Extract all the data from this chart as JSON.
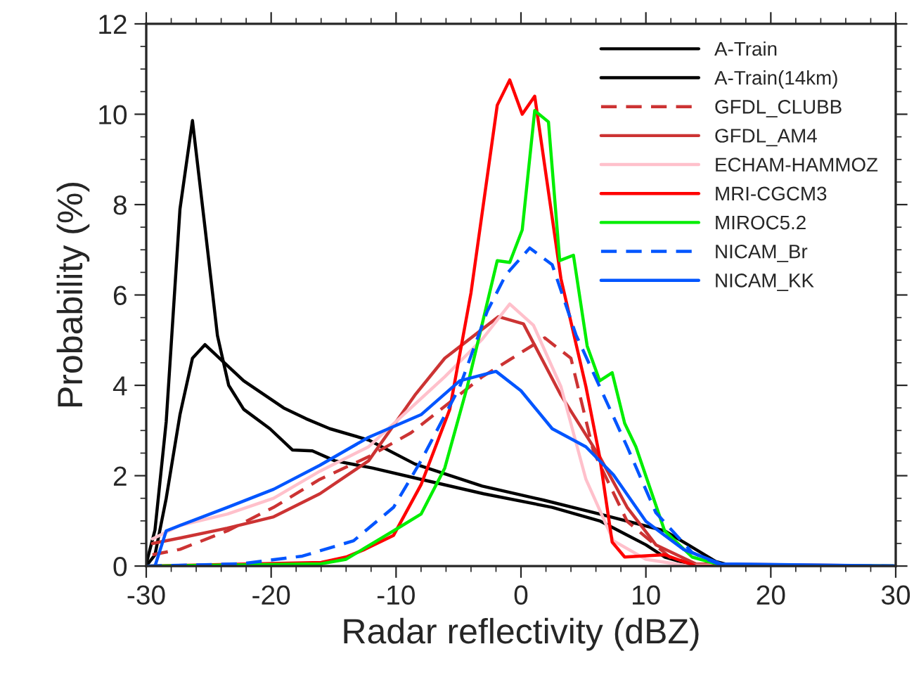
{
  "chart_data": {
    "type": "line",
    "xlabel": "Radar reflectivity (dBZ)",
    "ylabel": "Probability (%)",
    "xlim": [
      -30,
      30
    ],
    "ylim": [
      0,
      12
    ],
    "xticks": [
      -30,
      -20,
      -10,
      0,
      10,
      20,
      30
    ],
    "yticks": [
      0,
      2,
      4,
      6,
      8,
      10,
      12
    ],
    "grid": false,
    "legend": "top right",
    "marker": "none",
    "series": [
      {
        "name": "A-Train",
        "color": "#000000",
        "line_style": "solid",
        "x": [
          -30,
          -29.3,
          -28.4,
          -27.3,
          -26.3,
          -25.3,
          -22.2,
          -19,
          -17.2,
          -15.3,
          -12.2,
          -8.5,
          -3.1,
          1.8,
          6.3,
          11.5,
          13.5,
          15.6,
          17,
          30
        ],
        "values": [
          0,
          0.25,
          1.5,
          3.35,
          4.6,
          4.9,
          4.1,
          3.5,
          3.26,
          3.04,
          2.79,
          2.26,
          1.77,
          1.46,
          1.15,
          0.78,
          0.45,
          0.1,
          0,
          0
        ]
      },
      {
        "name": "A-Train(14km)",
        "color": "#000000",
        "line_style": "solid",
        "x": [
          -30,
          -29.3,
          -28.4,
          -27.3,
          -26.3,
          -25.3,
          -24.3,
          -23.4,
          -22.2,
          -20.1,
          -18.3,
          -16.7,
          -14.9,
          -11.9,
          -8.5,
          -3,
          2.5,
          6.3,
          10,
          11.5,
          14,
          30
        ],
        "values": [
          0.05,
          0.8,
          3.2,
          7.9,
          9.86,
          7.5,
          5.1,
          4.0,
          3.47,
          3.04,
          2.57,
          2.55,
          2.33,
          2.17,
          1.95,
          1.6,
          1.3,
          1.0,
          0.47,
          0.2,
          0,
          0
        ]
      },
      {
        "name": "GFDL_CLUBB",
        "color": "#cc3333",
        "line_style": "dashed",
        "x": [
          -29.5,
          -27.3,
          -23.5,
          -19.8,
          -16.1,
          -12.2,
          -8.8,
          -3.1,
          1.9,
          4.0,
          5.8,
          8.5,
          11.9,
          14,
          30
        ],
        "values": [
          0.25,
          0.37,
          0.78,
          1.3,
          1.92,
          2.42,
          2.95,
          4.19,
          5.05,
          4.6,
          2.54,
          0.99,
          0.2,
          0.03,
          0
        ]
      },
      {
        "name": "GFDL_AM4",
        "color": "#cc3333",
        "line_style": "solid",
        "x": [
          -29.5,
          -27.3,
          -23.5,
          -19.8,
          -16.1,
          -12.2,
          -8.5,
          -6.1,
          -1.8,
          0.2,
          3.2,
          6.3,
          8.5,
          10.8,
          14,
          30
        ],
        "values": [
          0.5,
          0.62,
          0.84,
          1.09,
          1.6,
          2.33,
          3.78,
          4.6,
          5.52,
          5.36,
          3.78,
          2.42,
          1.3,
          0.47,
          0.05,
          0
        ]
      },
      {
        "name": "ECHAM-HAMMOZ",
        "color": "#ffc0cb",
        "line_style": "solid",
        "x": [
          -29.5,
          -27.3,
          -23.5,
          -19.8,
          -16.1,
          -12.2,
          -6.1,
          -3.1,
          -0.9,
          1.0,
          3.2,
          5.2,
          7.4,
          10,
          13,
          30
        ],
        "values": [
          0.6,
          0.9,
          1.15,
          1.5,
          2.1,
          2.64,
          4.19,
          5.02,
          5.8,
          5.33,
          3.97,
          1.92,
          0.56,
          0.15,
          0.02,
          0
        ]
      },
      {
        "name": "MRI-CGCM3",
        "color": "#ff0000",
        "line_style": "solid",
        "x": [
          -30,
          -16,
          -14,
          -12.5,
          -10.2,
          -8,
          -5.7,
          -4,
          -1.9,
          -0.9,
          0.1,
          1.1,
          3.2,
          5.2,
          6.3,
          7.3,
          8.3,
          11.5,
          14,
          30
        ],
        "values": [
          0,
          0.08,
          0.2,
          0.37,
          0.68,
          1.8,
          3.47,
          6.05,
          10.2,
          10.76,
          10.0,
          10.4,
          6.36,
          3.97,
          2.42,
          0.53,
          0.2,
          0.25,
          0,
          0
        ]
      },
      {
        "name": "MIROC5.2",
        "color": "#00ee00",
        "line_style": "solid",
        "x": [
          -30,
          -16,
          -14,
          -12.5,
          -10.2,
          -8,
          -6.1,
          -4.3,
          -1.9,
          -0.9,
          0.1,
          1.1,
          2.2,
          3.1,
          4.2,
          5.3,
          6.3,
          7.3,
          8.3,
          9.2,
          11.5,
          13.7,
          16,
          30
        ],
        "values": [
          0,
          0.05,
          0.15,
          0.4,
          0.78,
          1.15,
          2.17,
          3.97,
          6.76,
          6.72,
          7.44,
          10.08,
          9.83,
          6.76,
          6.88,
          4.87,
          4.1,
          4.28,
          3.16,
          2.64,
          0.78,
          0.2,
          0.02,
          0
        ]
      },
      {
        "name": "NICAM_Br",
        "color": "#0055ff",
        "line_style": "dashed",
        "x": [
          -30,
          -22.4,
          -17.5,
          -13.4,
          -10.2,
          -8,
          -4.9,
          -2.7,
          -1.2,
          0.7,
          2.5,
          4.4,
          6.3,
          8.5,
          10.8,
          13.7,
          16,
          30
        ],
        "values": [
          0,
          0.05,
          0.22,
          0.56,
          1.3,
          2.33,
          3.97,
          5.64,
          6.45,
          7.04,
          6.67,
          5.12,
          3.97,
          2.64,
          1.18,
          0.3,
          0.02,
          0
        ]
      },
      {
        "name": "NICAM_KK",
        "color": "#0055ff",
        "line_style": "solid",
        "x": [
          -29.3,
          -28.4,
          -23.5,
          -19.8,
          -16.1,
          -12.2,
          -8,
          -4.9,
          -2,
          0,
          2.5,
          5.2,
          7.4,
          10,
          13,
          16,
          30
        ],
        "values": [
          0,
          0.78,
          1.3,
          1.7,
          2.23,
          2.85,
          3.35,
          4.1,
          4.31,
          3.88,
          3.04,
          2.64,
          2.02,
          0.99,
          0.37,
          0.05,
          0
        ]
      }
    ]
  }
}
